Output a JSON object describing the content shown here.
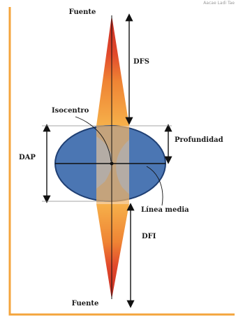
{
  "header": {
    "faint_text": "Aacae  Ladi  Tae"
  },
  "labels": {
    "top_source": "Fuente",
    "bottom_source": "Fuente",
    "dfs": "DFS",
    "dfi": "DFI",
    "isocenter": "Isocentro",
    "depth": "Profundidad",
    "dap": "DAP",
    "midline": "Línea media"
  },
  "colors": {
    "frame": "#f4a43c",
    "beam_outer": "#d9362a",
    "beam_mid": "#ef7f32",
    "beam_inner": "#f7b54a",
    "body_fill": "#4b76b3",
    "body_stroke": "#1f3f73",
    "field": "#f3b466",
    "axis": "#111111"
  }
}
